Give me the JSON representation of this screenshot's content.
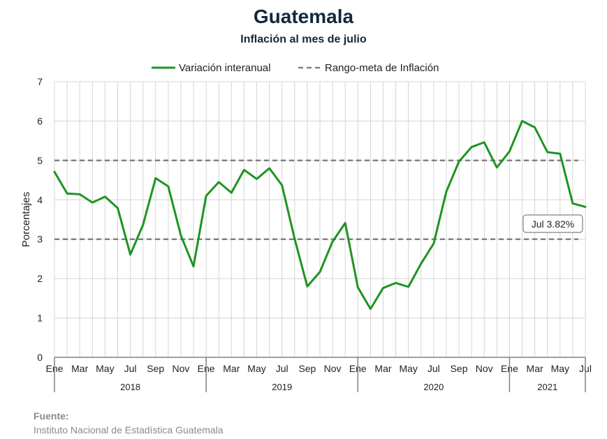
{
  "chart_data": {
    "type": "line",
    "title": "Guatemala",
    "subtitle": "Inflación al mes de julio",
    "ylabel": "Porcentajes",
    "xlabel": "",
    "ylim": [
      0,
      7
    ],
    "yticks": [
      "0",
      "1",
      "2",
      "3",
      "4",
      "5",
      "6",
      "7"
    ],
    "grid": true,
    "legend_position": "top",
    "month_labels": [
      "Ene",
      "Mar",
      "May",
      "Jul",
      "Sep",
      "Nov",
      "Ene",
      "Mar",
      "May",
      "Jul",
      "Sep",
      "Nov",
      "Ene",
      "Mar",
      "May",
      "Jul",
      "Sep",
      "Nov",
      "Ene",
      "Mar",
      "May",
      "Jul"
    ],
    "years": [
      "2018",
      "2019",
      "2020",
      "2021"
    ],
    "series": [
      {
        "name": "Variación interanual",
        "color": "#1e9421",
        "style": "solid",
        "x": [
          "2018-01",
          "2018-02",
          "2018-03",
          "2018-04",
          "2018-05",
          "2018-06",
          "2018-07",
          "2018-08",
          "2018-09",
          "2018-10",
          "2018-11",
          "2018-12",
          "2019-01",
          "2019-02",
          "2019-03",
          "2019-04",
          "2019-05",
          "2019-06",
          "2019-07",
          "2019-08",
          "2019-09",
          "2019-10",
          "2019-11",
          "2019-12",
          "2020-01",
          "2020-02",
          "2020-03",
          "2020-04",
          "2020-05",
          "2020-06",
          "2020-07",
          "2020-08",
          "2020-09",
          "2020-10",
          "2020-11",
          "2020-12",
          "2021-01",
          "2021-02",
          "2021-03",
          "2021-04",
          "2021-05",
          "2021-06",
          "2021-07"
        ],
        "values": [
          4.71,
          4.16,
          4.14,
          3.93,
          4.08,
          3.79,
          2.61,
          3.36,
          4.55,
          4.34,
          3.09,
          2.31,
          4.1,
          4.45,
          4.18,
          4.76,
          4.53,
          4.8,
          4.37,
          3.01,
          1.8,
          2.17,
          2.94,
          3.41,
          1.78,
          1.23,
          1.76,
          1.89,
          1.79,
          2.38,
          2.89,
          4.21,
          4.97,
          5.34,
          5.46,
          4.82,
          5.23,
          6.0,
          5.84,
          5.21,
          5.17,
          3.91,
          3.82
        ]
      },
      {
        "name": "Rango-meta de Inflación",
        "color": "#808080",
        "style": "dashed",
        "values": [
          3,
          5
        ]
      }
    ],
    "annotation": "Jul 3.82%"
  },
  "source": {
    "label": "Fuente:",
    "text": "Instituto Nacional de Estadística Guatemala"
  }
}
